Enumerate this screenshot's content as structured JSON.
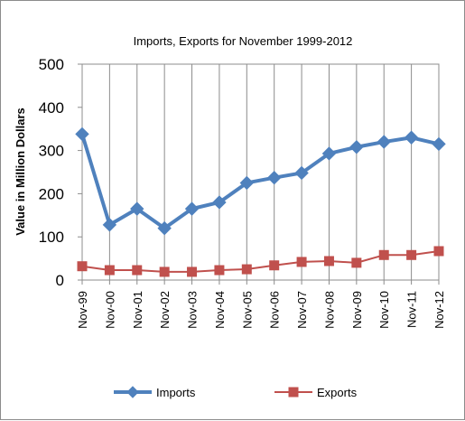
{
  "chart_data": {
    "type": "line",
    "title": "Imports, Exports for  November 1999-2012",
    "xlabel": "",
    "ylabel": "Value in  Million  Dollars",
    "categories": [
      "Nov-99",
      "Nov-00",
      "Nov-01",
      "Nov-02",
      "Nov-03",
      "Nov-04",
      "Nov-05",
      "Nov-06",
      "Nov-07",
      "Nov-08",
      "Nov-09",
      "Nov-10",
      "Nov-11",
      "Nov-12"
    ],
    "ylim": [
      0,
      500
    ],
    "yticks": [
      0,
      100,
      200,
      300,
      400,
      500
    ],
    "grid": "vertical",
    "legend": "bottom",
    "series": [
      {
        "name": "Imports",
        "color": "#4f81bd",
        "marker": "diamond",
        "values": [
          338,
          128,
          165,
          120,
          165,
          180,
          225,
          237,
          248,
          293,
          308,
          320,
          330,
          315
        ]
      },
      {
        "name": "Exports",
        "color": "#c0504d",
        "marker": "square",
        "values": [
          32,
          23,
          23,
          19,
          19,
          23,
          25,
          34,
          42,
          44,
          40,
          58,
          58,
          67
        ]
      }
    ]
  }
}
